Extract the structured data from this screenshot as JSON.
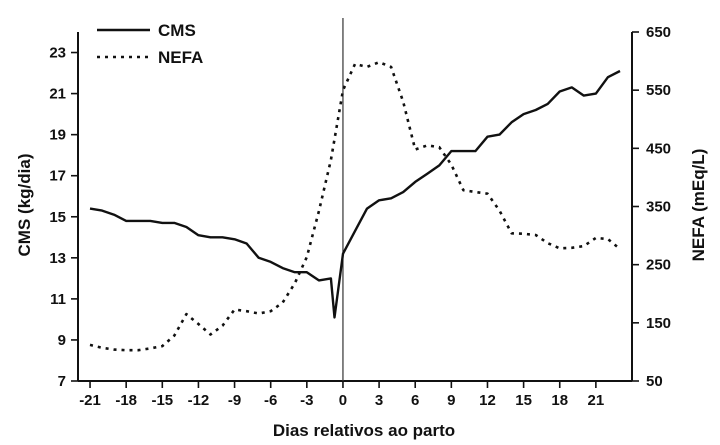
{
  "chart_data": {
    "type": "line",
    "xlabel": "Dias relativos ao parto",
    "ylabel_left": "CMS (kg/dia)",
    "ylabel_right": "NEFA (mEq/L)",
    "xlim": [
      -22,
      24
    ],
    "ylim_left": [
      7,
      24
    ],
    "ylim_right": [
      50,
      650
    ],
    "x_ticks": [
      -21,
      -18,
      -15,
      -12,
      -9,
      -6,
      -3,
      0,
      3,
      6,
      9,
      12,
      15,
      18,
      21
    ],
    "y_left_ticks": [
      7,
      9,
      11,
      13,
      15,
      17,
      19,
      21,
      23
    ],
    "y_right_ticks": [
      50,
      150,
      250,
      350,
      450,
      550,
      650
    ],
    "vline_x": 0,
    "legend": [
      "CMS",
      "NEFA"
    ],
    "grid": false,
    "legend_position": "top-left",
    "series": [
      {
        "name": "CMS",
        "axis": "left",
        "style": "solid",
        "x": [
          -21,
          -20,
          -19,
          -18,
          -17,
          -16,
          -15,
          -14,
          -13,
          -12,
          -11,
          -10,
          -9,
          -8,
          -7,
          -6,
          -5,
          -4,
          -3,
          -2,
          -1,
          -0.7,
          0,
          1,
          2,
          3,
          4,
          5,
          6,
          7,
          8,
          9,
          10,
          11,
          12,
          13,
          14,
          15,
          16,
          17,
          18,
          19,
          20,
          21,
          22,
          23
        ],
        "values": [
          15.4,
          15.3,
          15.1,
          14.8,
          14.8,
          14.8,
          14.7,
          14.7,
          14.5,
          14.1,
          14.0,
          14.0,
          13.9,
          13.7,
          13.0,
          12.8,
          12.5,
          12.3,
          12.3,
          11.9,
          12.0,
          10.1,
          13.2,
          14.3,
          15.4,
          15.8,
          15.9,
          16.2,
          16.7,
          17.1,
          17.5,
          18.2,
          18.2,
          18.2,
          18.9,
          19.0,
          19.6,
          20.0,
          20.2,
          20.5,
          21.1,
          21.3,
          20.9,
          21.0,
          21.8,
          22.1
        ]
      },
      {
        "name": "NEFA",
        "axis": "right",
        "style": "dotted",
        "x": [
          -21,
          -20,
          -19,
          -18,
          -17,
          -16,
          -15,
          -14,
          -13,
          -12,
          -11,
          -10,
          -9,
          -8,
          -7,
          -6,
          -5,
          -4,
          -3,
          -2,
          -1,
          0,
          1,
          2,
          3,
          4,
          5,
          6,
          7,
          8,
          9,
          10,
          11,
          12,
          13,
          14,
          15,
          16,
          17,
          18,
          19,
          20,
          21,
          22,
          23
        ],
        "values": [
          112,
          107,
          104,
          103,
          103,
          106,
          110,
          128,
          165,
          148,
          130,
          145,
          173,
          170,
          166,
          170,
          185,
          218,
          263,
          342,
          430,
          550,
          595,
          590,
          598,
          590,
          530,
          448,
          455,
          452,
          422,
          378,
          375,
          372,
          343,
          304,
          303,
          301,
          287,
          278,
          279,
          282,
          296,
          294,
          277
        ]
      }
    ]
  }
}
